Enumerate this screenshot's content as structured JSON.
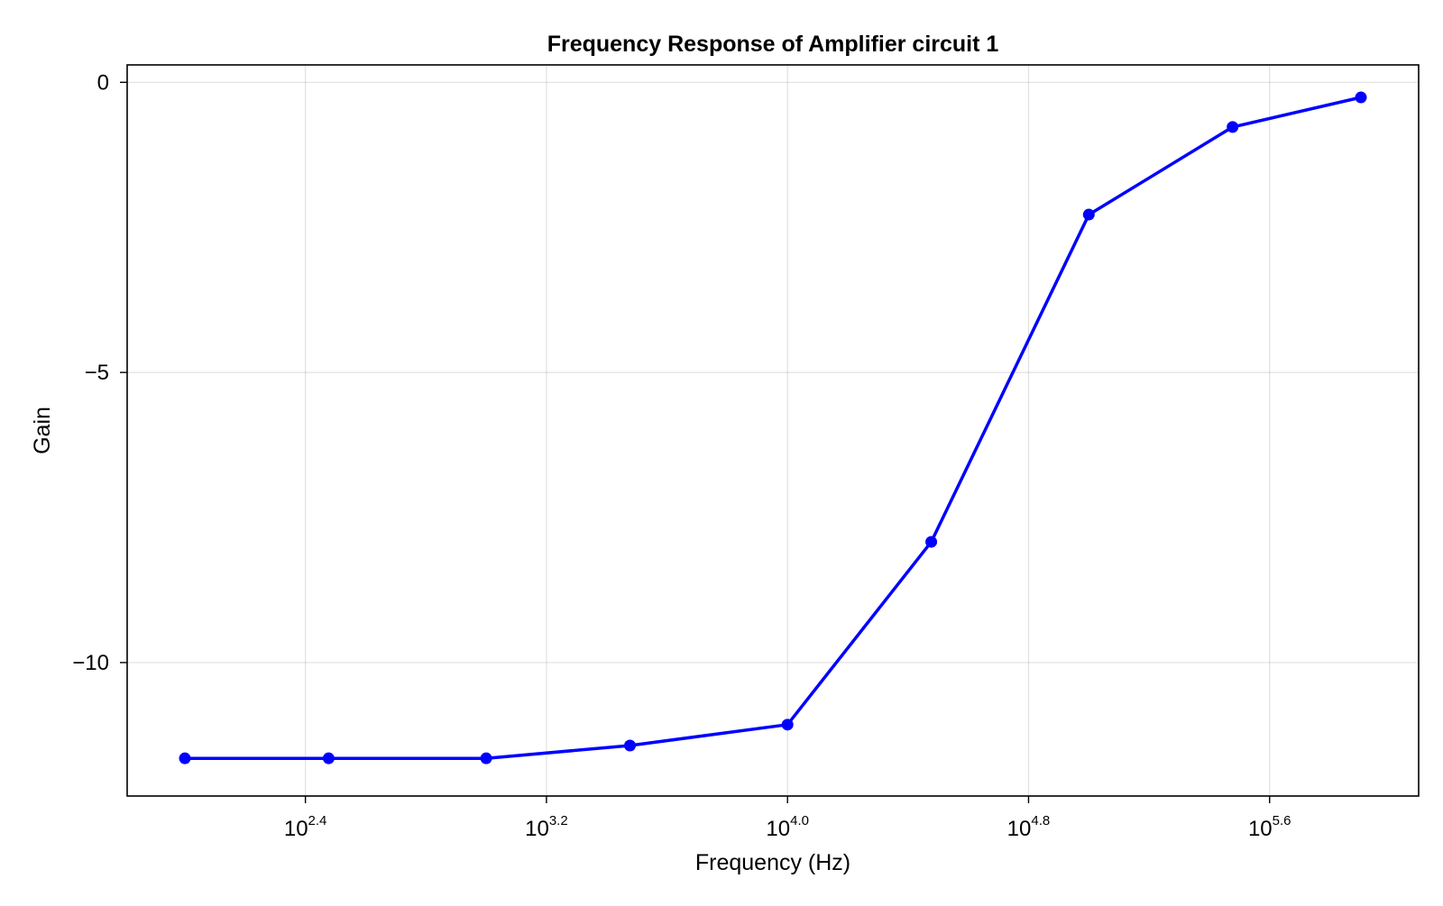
{
  "chart_data": {
    "type": "line",
    "title": "Frequency Response of Amplifier circuit 1",
    "xlabel": "Frequency (Hz)",
    "ylabel": "Gain",
    "x_scale": "log10",
    "x": [
      100,
      300,
      1000,
      3000,
      10000,
      30000,
      100000,
      300000,
      800000
    ],
    "xlim": [
      100,
      800000
    ],
    "ylim": [
      -12.3,
      0.3
    ],
    "x_ticks": [
      {
        "value": 251.19,
        "base": "10",
        "exp": "2.4"
      },
      {
        "value": 1584.89,
        "base": "10",
        "exp": "3.2"
      },
      {
        "value": 10000,
        "base": "10",
        "exp": "4.0"
      },
      {
        "value": 63095.73,
        "base": "10",
        "exp": "4.8"
      },
      {
        "value": 398107.17,
        "base": "10",
        "exp": "5.6"
      }
    ],
    "y_ticks": [
      {
        "value": 0,
        "label": "0"
      },
      {
        "value": -5,
        "label": "−5"
      },
      {
        "value": -10,
        "label": "−10"
      }
    ],
    "series": [
      {
        "values": [
          -11.65,
          -11.65,
          -11.65,
          -11.43,
          -11.07,
          -7.92,
          -2.28,
          -0.77,
          -0.26
        ],
        "color": "#0000ff",
        "marker": "circle"
      }
    ],
    "grid": true,
    "legend": "none"
  }
}
